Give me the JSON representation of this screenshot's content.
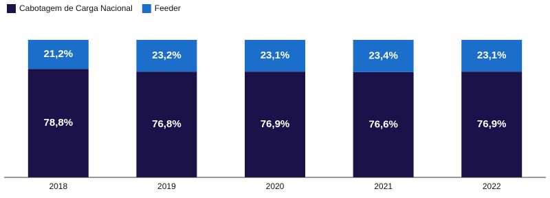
{
  "chart_data": {
    "type": "stacked_bar",
    "categories": [
      "2018",
      "2019",
      "2020",
      "2021",
      "2022"
    ],
    "series": [
      {
        "name": "Cabotagem de Carga Nacional",
        "color": "#1b1249",
        "values": [
          78.8,
          76.8,
          76.9,
          76.6,
          76.9
        ],
        "value_labels": [
          "78,8%",
          "76,8%",
          "76,9%",
          "76,6%",
          "76,9%"
        ]
      },
      {
        "name": "Feeder",
        "color": "#1b6fca",
        "values": [
          21.2,
          23.2,
          23.1,
          23.4,
          23.1
        ],
        "value_labels": [
          "21,2%",
          "23,2%",
          "23,1%",
          "23,4%",
          "23,1%"
        ]
      }
    ],
    "ylim": [
      0,
      100
    ],
    "legend": "top-left"
  }
}
